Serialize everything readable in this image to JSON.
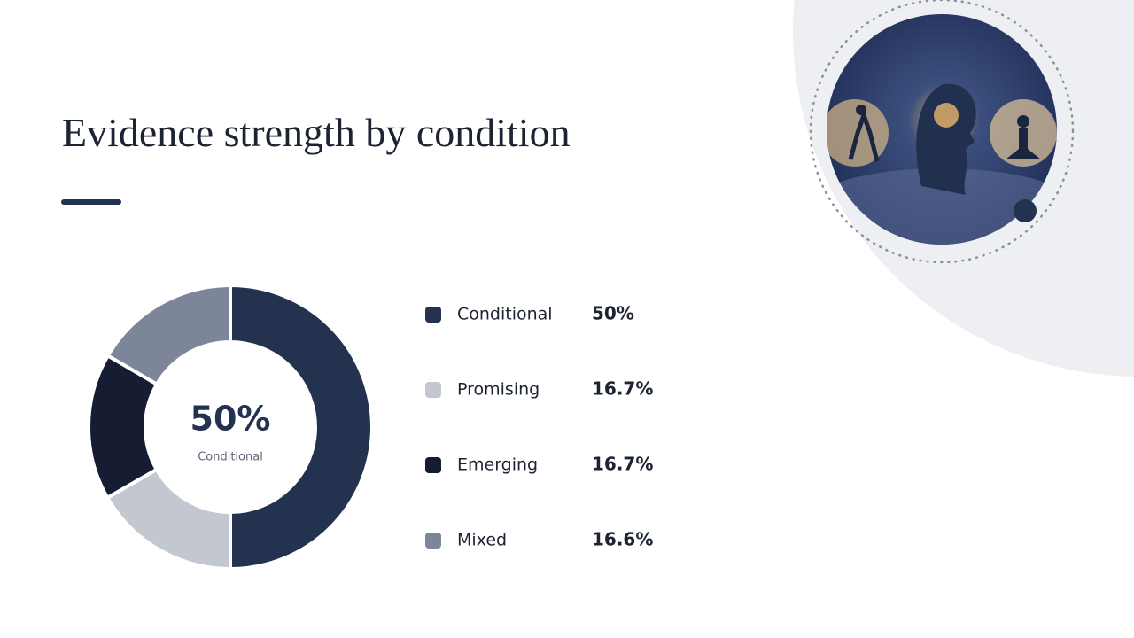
{
  "chart_data": {
    "type": "pie",
    "title": "Evidence strength by condition",
    "categories": [
      "Conditional",
      "Promising",
      "Emerging",
      "Mixed"
    ],
    "values": [
      50,
      16.7,
      16.7,
      16.6
    ],
    "value_labels": [
      "50%",
      "16.7%",
      "16.7%",
      "16.6%"
    ],
    "colors": [
      "#22324f",
      "#c3c7d0",
      "#161d33",
      "#7d8599"
    ]
  }
}
